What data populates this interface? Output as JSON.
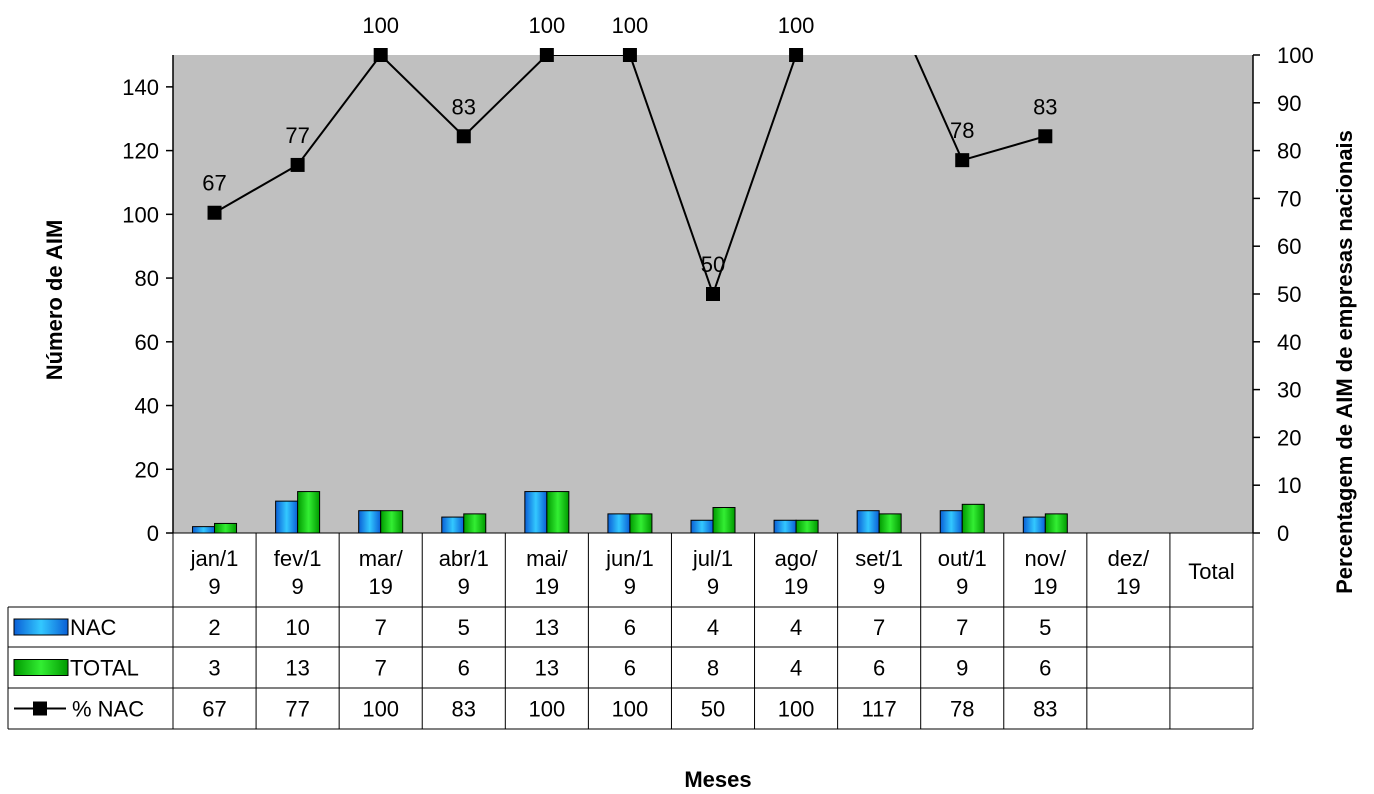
{
  "chart_data": {
    "type": "bar",
    "title": "",
    "xlabel": "Meses",
    "ylabel": "Número de AIM",
    "y2label": "Percentagem de AIM de empresas nacionais",
    "ylim": [
      0,
      150
    ],
    "y2lim": [
      0,
      100
    ],
    "yticks": [
      0,
      20,
      40,
      60,
      80,
      100,
      120,
      140
    ],
    "y2ticks": [
      0,
      10,
      20,
      30,
      40,
      50,
      60,
      70,
      80,
      90,
      100
    ],
    "grid": false,
    "plot_background": "#C0C0C0",
    "legend": "data table",
    "categories": [
      [
        "jan/1",
        "9"
      ],
      [
        "fev/1",
        "9"
      ],
      [
        "mar/",
        "19"
      ],
      [
        "abr/1",
        "9"
      ],
      [
        "mai/",
        "19"
      ],
      [
        "jun/1",
        "9"
      ],
      [
        "jul/1",
        "9"
      ],
      [
        "ago/",
        "19"
      ],
      [
        "set/1",
        "9"
      ],
      [
        "out/1",
        "9"
      ],
      [
        "nov/",
        "19"
      ],
      [
        "dez/",
        "19"
      ],
      [
        "Total"
      ]
    ],
    "series": [
      {
        "name": "NAC",
        "type": "bar",
        "axis": "left",
        "color": "#1E90FF",
        "values": [
          2,
          10,
          7,
          5,
          13,
          6,
          4,
          4,
          7,
          7,
          5,
          null,
          null
        ]
      },
      {
        "name": "TOTAL",
        "type": "bar",
        "axis": "left",
        "color": "#00CC00",
        "values": [
          3,
          13,
          7,
          6,
          13,
          6,
          8,
          4,
          6,
          9,
          6,
          null,
          null
        ]
      },
      {
        "name": "% NAC",
        "type": "line",
        "axis": "right",
        "color": "#000000",
        "values": [
          67,
          77,
          100,
          83,
          100,
          100,
          50,
          100,
          117,
          78,
          83,
          null,
          null
        ]
      }
    ],
    "table": {
      "rows": [
        {
          "label": "NAC",
          "values": [
            "2",
            "10",
            "7",
            "5",
            "13",
            "6",
            "4",
            "4",
            "7",
            "7",
            "5",
            "",
            ""
          ]
        },
        {
          "label": "TOTAL",
          "values": [
            "3",
            "13",
            "7",
            "6",
            "13",
            "6",
            "8",
            "4",
            "6",
            "9",
            "6",
            "",
            ""
          ]
        },
        {
          "label": "% NAC",
          "values": [
            "67",
            "77",
            "100",
            "83",
            "100",
            "100",
            "50",
            "100",
            "117",
            "78",
            "83",
            "",
            ""
          ]
        }
      ]
    }
  }
}
